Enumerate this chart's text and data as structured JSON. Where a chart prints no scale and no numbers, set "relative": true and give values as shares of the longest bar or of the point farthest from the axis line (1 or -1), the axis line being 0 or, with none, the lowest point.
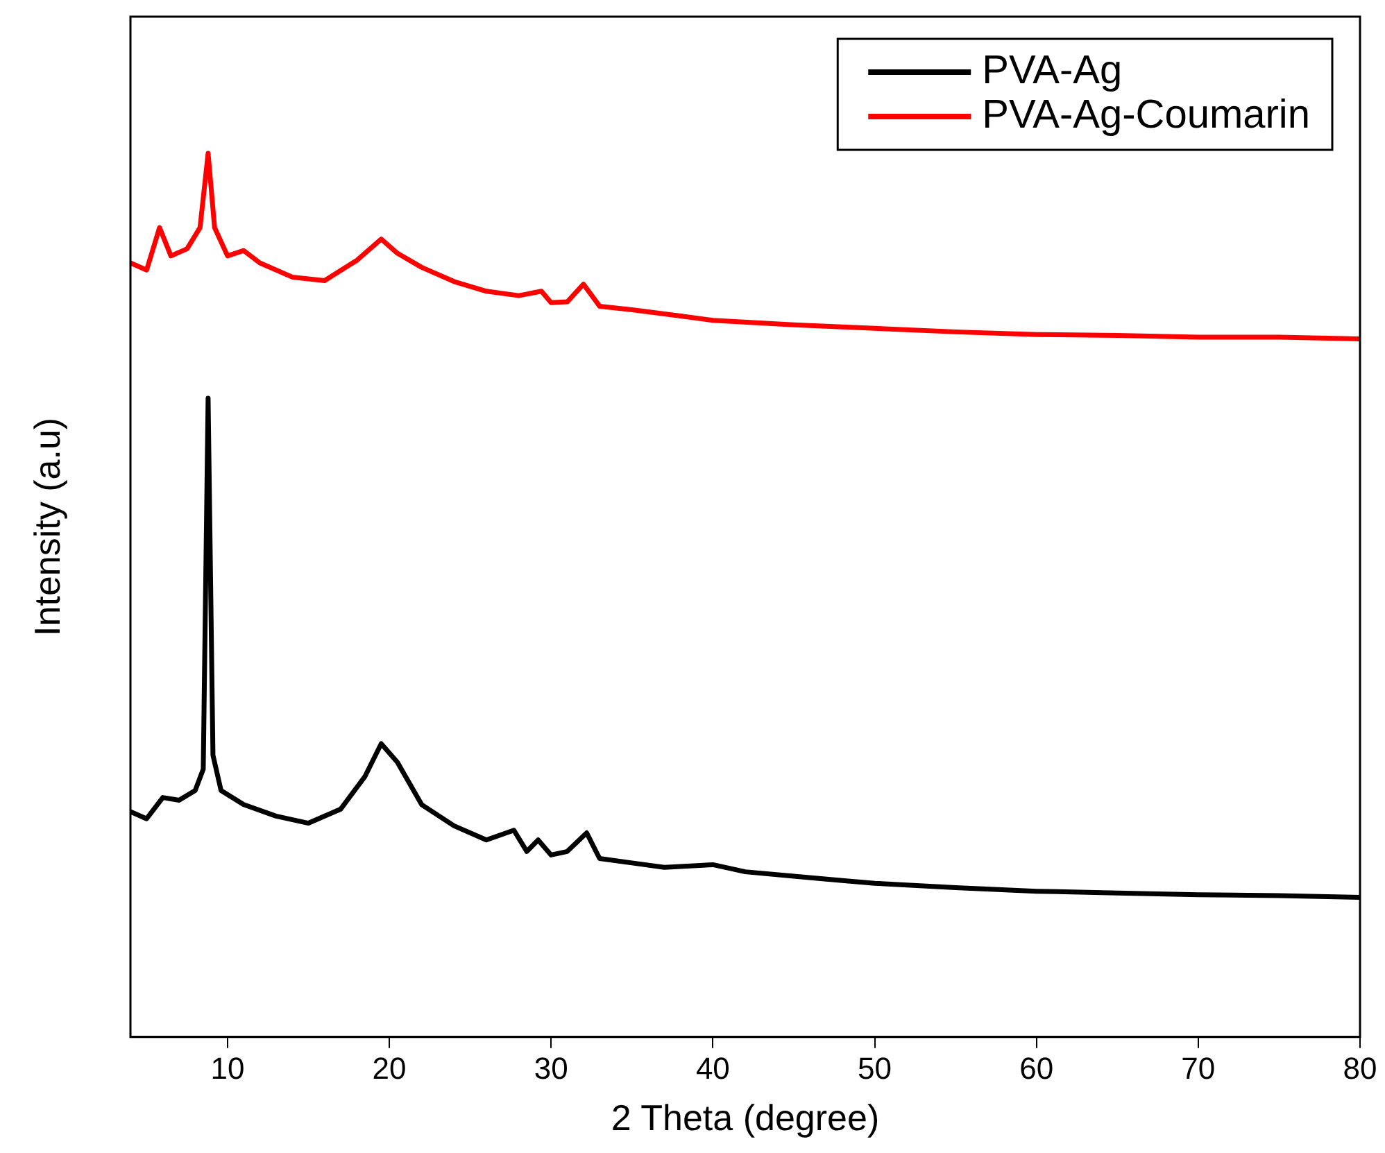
{
  "chart_data": {
    "type": "line",
    "xlabel": "2 Theta (degree)",
    "ylabel": "Intensity (a.u)",
    "relative": true,
    "xlim": [
      4,
      80
    ],
    "xticks": [
      10,
      20,
      30,
      40,
      50,
      60,
      70,
      80
    ],
    "legend": "top right",
    "grid": false,
    "marker": "none",
    "line_style": "solid",
    "series": [
      {
        "name": "PVA-Ag",
        "color": "#000000",
        "x": [
          4,
          5,
          6,
          7,
          8,
          8.5,
          8.8,
          9.1,
          9.6,
          11,
          13,
          15,
          17,
          18.5,
          19.5,
          20.5,
          22,
          24,
          26,
          27.7,
          28.5,
          29.2,
          30,
          31,
          32.2,
          33,
          35,
          37,
          40,
          42,
          45,
          48,
          50,
          55,
          60,
          65,
          70,
          75,
          80
        ],
        "values": [
          0.255,
          0.247,
          0.271,
          0.268,
          0.279,
          0.303,
          0.723,
          0.319,
          0.279,
          0.263,
          0.25,
          0.242,
          0.258,
          0.295,
          0.332,
          0.311,
          0.263,
          0.239,
          0.223,
          0.234,
          0.21,
          0.223,
          0.206,
          0.21,
          0.231,
          0.202,
          0.197,
          0.192,
          0.195,
          0.187,
          0.182,
          0.177,
          0.174,
          0.169,
          0.165,
          0.163,
          0.161,
          0.16,
          0.158
        ]
      },
      {
        "name": "PVA-Ag-Coumarin",
        "color": "#ff0000",
        "x": [
          4,
          5,
          5.8,
          6.5,
          7.5,
          8.3,
          8.8,
          9.2,
          10,
          11,
          12,
          14,
          16,
          18,
          19.5,
          20.5,
          22,
          24,
          26,
          28,
          29.4,
          30,
          31,
          32,
          33,
          35,
          38,
          40,
          45,
          50,
          55,
          60,
          65,
          70,
          75,
          80
        ],
        "values": [
          0.876,
          0.868,
          0.916,
          0.884,
          0.892,
          0.916,
          1,
          0.916,
          0.884,
          0.89,
          0.876,
          0.86,
          0.856,
          0.879,
          0.903,
          0.887,
          0.871,
          0.855,
          0.844,
          0.839,
          0.844,
          0.831,
          0.832,
          0.852,
          0.827,
          0.823,
          0.816,
          0.811,
          0.806,
          0.802,
          0.798,
          0.795,
          0.794,
          0.792,
          0.792,
          0.79
        ]
      }
    ]
  }
}
